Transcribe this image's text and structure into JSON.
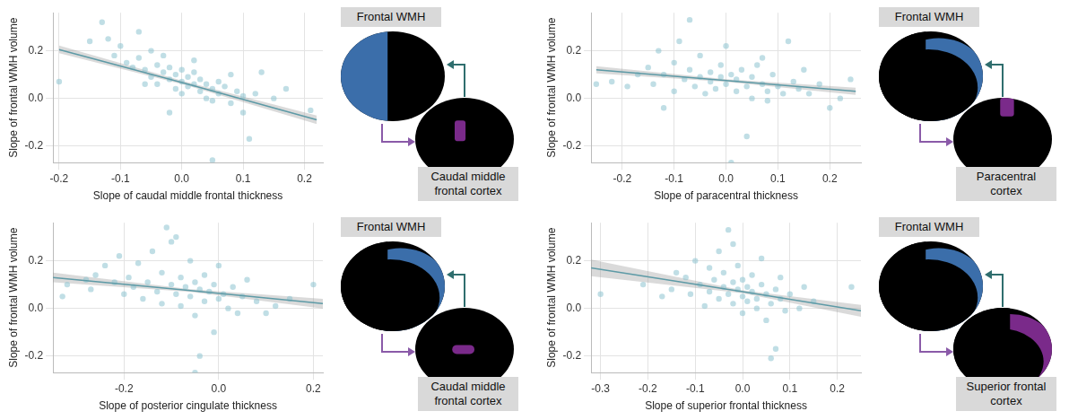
{
  "chart_data": [
    {
      "type": "scatter",
      "xlabel": "Slope of caudal middle frontal thickness",
      "ylabel": "Slope of frontal WMH volume",
      "annotations": [
        "Frontal WMH",
        "Caudal middle frontal cortex"
      ],
      "grid": true,
      "xlim": [
        -0.21,
        0.23
      ],
      "xticks": [
        -0.2,
        -0.1,
        {
          "value": 0,
          "label": "0.0"
        },
        0.1,
        0.2
      ],
      "ylim": [
        -0.27,
        0.36
      ],
      "yticks": [
        -0.2,
        {
          "value": 0,
          "label": "0.0"
        },
        0.2
      ],
      "series": [
        {
          "type": "scatter",
          "color": "#8cc3cf",
          "x": [
            -0.2,
            -0.15,
            -0.13,
            -0.12,
            -0.11,
            -0.1,
            -0.09,
            -0.08,
            -0.07,
            -0.07,
            -0.06,
            -0.05,
            -0.05,
            -0.04,
            -0.04,
            -0.03,
            -0.03,
            -0.02,
            -0.02,
            -0.01,
            -0.01,
            0.0,
            0.0,
            0.0,
            0.01,
            0.01,
            0.02,
            0.02,
            0.03,
            0.03,
            0.04,
            0.04,
            0.05,
            0.05,
            0.06,
            0.06,
            0.07,
            0.08,
            0.08,
            0.09,
            0.1,
            0.1,
            0.11,
            0.12,
            0.13,
            0.15,
            0.17,
            0.21,
            -0.02,
            0.05,
            0.02,
            -0.06
          ],
          "values": [
            0.07,
            0.24,
            0.32,
            0.25,
            0.18,
            0.22,
            0.15,
            0.13,
            0.28,
            0.17,
            0.12,
            0.2,
            0.09,
            0.14,
            0.06,
            0.11,
            0.18,
            0.08,
            0.13,
            0.1,
            0.04,
            0.07,
            0.12,
            0.02,
            0.09,
            0.05,
            0.06,
            0.11,
            0.03,
            0.08,
            0.0,
            0.06,
            0.04,
            -0.01,
            0.07,
            0.02,
            0.05,
            -0.02,
            0.1,
            0.03,
            0.01,
            -0.06,
            -0.17,
            0.02,
            0.11,
            0.0,
            0.04,
            -0.05,
            -0.06,
            -0.26,
            0.16,
            0.06
          ]
        },
        {
          "type": "line",
          "color": "#5d9aa6",
          "x": [
            -0.2,
            0.01,
            0.22
          ],
          "values": [
            0.205,
            0.06,
            -0.09
          ],
          "lower": [
            0.19,
            0.053,
            -0.108
          ],
          "upper": [
            0.222,
            0.067,
            -0.072
          ]
        }
      ]
    },
    {
      "type": "scatter",
      "xlabel": "Slope of paracentral thickness",
      "ylabel": "Slope of frontal WMH volume",
      "annotations": [
        "Frontal WMH",
        "Paracentral cortex"
      ],
      "grid": true,
      "xlim": [
        -0.26,
        0.26
      ],
      "xticks": [
        -0.2,
        -0.1,
        {
          "value": 0,
          "label": "0.0"
        },
        0.1,
        0.2
      ],
      "ylim": [
        -0.27,
        0.36
      ],
      "yticks": [
        -0.2,
        {
          "value": 0,
          "label": "0.0"
        },
        0.2
      ],
      "series": [
        {
          "type": "scatter",
          "color": "#8cc3cf",
          "x": [
            -0.25,
            -0.22,
            -0.19,
            -0.17,
            -0.15,
            -0.14,
            -0.13,
            -0.12,
            -0.1,
            -0.1,
            -0.09,
            -0.08,
            -0.07,
            -0.07,
            -0.06,
            -0.05,
            -0.05,
            -0.04,
            -0.03,
            -0.03,
            -0.02,
            -0.01,
            -0.01,
            0.0,
            0.0,
            0.01,
            0.02,
            0.02,
            0.03,
            0.04,
            0.05,
            0.05,
            0.06,
            0.07,
            0.08,
            0.08,
            0.09,
            0.1,
            0.11,
            0.12,
            0.13,
            0.14,
            0.15,
            0.16,
            0.18,
            0.2,
            0.22,
            0.24,
            -0.12,
            0.04,
            0.01,
            0.07
          ],
          "values": [
            0.06,
            0.07,
            0.05,
            0.1,
            0.13,
            0.06,
            0.2,
            0.1,
            0.15,
            0.03,
            0.24,
            0.08,
            0.33,
            0.12,
            0.05,
            0.18,
            0.09,
            0.02,
            0.11,
            0.07,
            0.04,
            0.14,
            0.09,
            0.06,
            0.22,
            0.1,
            0.03,
            0.08,
            0.12,
            0.05,
            0.0,
            0.09,
            0.14,
            0.06,
            0.03,
            -0.01,
            0.1,
            0.05,
            0.02,
            0.24,
            0.07,
            0.04,
            0.12,
            0.02,
            0.06,
            -0.04,
            0.0,
            0.08,
            -0.04,
            -0.16,
            -0.27,
            0.17
          ]
        },
        {
          "type": "line",
          "color": "#5d9aa6",
          "x": [
            -0.25,
            0.0,
            0.25
          ],
          "values": [
            0.12,
            0.075,
            0.03
          ],
          "lower": [
            0.105,
            0.069,
            0.015
          ],
          "upper": [
            0.135,
            0.081,
            0.045
          ]
        }
      ]
    },
    {
      "type": "scatter",
      "xlabel": "Slope of posterior cingulate thickness",
      "ylabel": "Slope of frontal WMH volume",
      "annotations": [
        "Frontal WMH",
        "Caudal middle frontal cortex"
      ],
      "grid": true,
      "xlim": [
        -0.35,
        0.22
      ],
      "xticks": [
        -0.2,
        {
          "value": 0,
          "label": "0.0"
        },
        0.2
      ],
      "ylim": [
        -0.27,
        0.36
      ],
      "yticks": [
        -0.2,
        {
          "value": 0,
          "label": "0.0"
        },
        0.2
      ],
      "series": [
        {
          "type": "scatter",
          "color": "#8cc3cf",
          "x": [
            -0.33,
            -0.32,
            -0.28,
            -0.27,
            -0.26,
            -0.24,
            -0.22,
            -0.21,
            -0.2,
            -0.19,
            -0.18,
            -0.17,
            -0.16,
            -0.15,
            -0.14,
            -0.13,
            -0.12,
            -0.12,
            -0.11,
            -0.1,
            -0.1,
            -0.09,
            -0.08,
            -0.08,
            -0.07,
            -0.06,
            -0.06,
            -0.05,
            -0.05,
            -0.04,
            -0.03,
            -0.03,
            -0.02,
            -0.01,
            -0.01,
            0.0,
            0.0,
            0.01,
            0.02,
            0.03,
            0.04,
            0.05,
            0.06,
            0.08,
            0.1,
            0.12,
            0.15,
            0.2,
            -0.04,
            -0.05,
            -0.09
          ],
          "values": [
            0.05,
            0.1,
            0.12,
            0.08,
            0.14,
            0.18,
            0.11,
            0.22,
            0.06,
            0.13,
            0.09,
            0.19,
            0.04,
            0.11,
            0.24,
            0.07,
            0.15,
            0.02,
            0.34,
            0.1,
            0.28,
            0.06,
            0.13,
            0.01,
            0.09,
            0.2,
            0.05,
            0.11,
            -0.03,
            0.08,
            0.14,
            0.03,
            0.07,
            -0.1,
            0.1,
            0.04,
            0.18,
            0.06,
            0.0,
            0.09,
            -0.02,
            0.05,
            0.12,
            0.03,
            -0.02,
            0.01,
            0.04,
            0.1,
            -0.2,
            -0.27,
            0.3
          ]
        },
        {
          "type": "line",
          "color": "#5d9aa6",
          "x": [
            -0.35,
            -0.06,
            0.22
          ],
          "values": [
            0.13,
            0.075,
            0.02
          ],
          "lower": [
            0.11,
            0.069,
            0.0
          ],
          "upper": [
            0.15,
            0.081,
            0.04
          ]
        }
      ]
    },
    {
      "type": "scatter",
      "xlabel": "Slope of superior frontal thickness",
      "ylabel": "Slope of frontal WMH volume",
      "annotations": [
        "Frontal WMH",
        "Superior frontal cortex"
      ],
      "grid": true,
      "xlim": [
        -0.32,
        0.25
      ],
      "xticks": [
        -0.3,
        -0.2,
        -0.1,
        {
          "value": 0,
          "label": "0.0"
        },
        0.1,
        0.2
      ],
      "ylim": [
        -0.27,
        0.36
      ],
      "yticks": [
        -0.2,
        {
          "value": 0,
          "label": "0.0"
        },
        0.2
      ],
      "series": [
        {
          "type": "scatter",
          "color": "#8cc3cf",
          "x": [
            -0.3,
            -0.21,
            -0.17,
            -0.15,
            -0.14,
            -0.12,
            -0.11,
            -0.1,
            -0.09,
            -0.08,
            -0.07,
            -0.07,
            -0.06,
            -0.05,
            -0.05,
            -0.04,
            -0.04,
            -0.03,
            -0.03,
            -0.02,
            -0.02,
            -0.01,
            -0.01,
            0.0,
            0.0,
            0.0,
            0.01,
            0.01,
            0.02,
            0.02,
            0.03,
            0.03,
            0.04,
            0.05,
            0.05,
            0.06,
            0.07,
            0.08,
            0.08,
            0.09,
            0.1,
            0.12,
            0.13,
            0.15,
            0.23,
            0.07,
            0.06,
            -0.02,
            0.04
          ],
          "values": [
            0.06,
            0.1,
            0.05,
            0.08,
            0.15,
            0.13,
            0.06,
            0.2,
            0.1,
            0.01,
            0.17,
            0.07,
            0.12,
            0.24,
            0.04,
            0.09,
            0.15,
            0.33,
            0.06,
            0.11,
            0.02,
            0.08,
            0.18,
            0.05,
            0.12,
            -0.02,
            0.09,
            0.03,
            0.07,
            0.14,
            0.04,
            0.0,
            0.1,
            0.06,
            -0.05,
            0.02,
            0.08,
            0.04,
            0.13,
            -0.01,
            0.06,
            0.0,
            0.09,
            0.03,
            0.09,
            -0.17,
            -0.21,
            0.27,
            0.21
          ]
        },
        {
          "type": "line",
          "color": "#5d9aa6",
          "x": [
            -0.32,
            0.0,
            0.25
          ],
          "values": [
            0.17,
            0.07,
            -0.01
          ],
          "lower": [
            0.135,
            0.064,
            -0.035
          ],
          "upper": [
            0.205,
            0.076,
            0.015
          ]
        }
      ]
    }
  ]
}
